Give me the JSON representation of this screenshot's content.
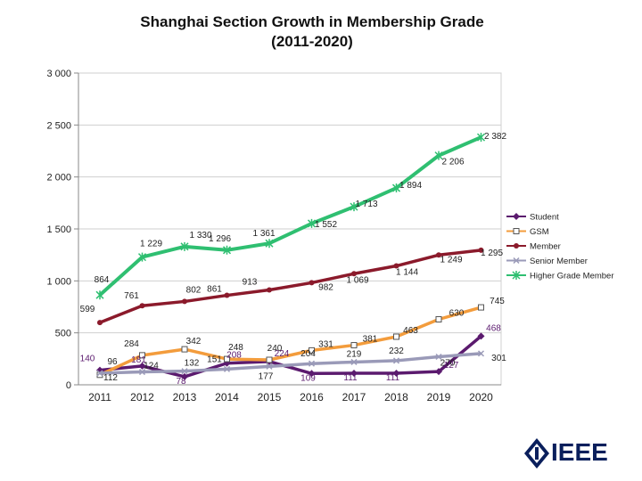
{
  "chart_data": {
    "type": "line",
    "title_line1": "Shanghai Section Growth in Membership Grade",
    "title_line2": "(2011-2020)",
    "categories": [
      "2011",
      "2012",
      "2013",
      "2014",
      "2015",
      "2016",
      "2017",
      "2018",
      "2019",
      "2020"
    ],
    "ylim": [
      0,
      3000
    ],
    "yticks": [
      0,
      500,
      1000,
      1500,
      2000,
      2500,
      3000
    ],
    "ytick_labels": [
      "0",
      "500",
      "1 000",
      "1 500",
      "2 000",
      "2 500",
      "3 000"
    ],
    "series": [
      {
        "name": "Student",
        "color": "#5b1a6e",
        "marker": "diamond",
        "values": [
          140,
          181,
          78,
          208,
          224,
          109,
          111,
          111,
          127,
          468
        ],
        "labels": [
          "140",
          "181",
          "78",
          "208",
          "224",
          "109",
          "111",
          "111",
          "127",
          "468"
        ]
      },
      {
        "name": "GSM",
        "color": "#f39c3c",
        "marker": "square",
        "values": [
          96,
          284,
          342,
          248,
          240,
          331,
          381,
          463,
          630,
          745
        ],
        "labels": [
          "96",
          "284",
          "342",
          "248",
          "240",
          "331",
          "381",
          "463",
          "630",
          "745"
        ]
      },
      {
        "name": "Member",
        "color": "#8b1a2b",
        "marker": "circle",
        "values": [
          599,
          761,
          802,
          861,
          913,
          982,
          1069,
          1144,
          1249,
          1295
        ],
        "labels": [
          "599",
          "761",
          "802",
          "861",
          "913",
          "982",
          "1 069",
          "1 144",
          "1 249",
          "1 295"
        ]
      },
      {
        "name": "Senior Member",
        "color": "#9a9ab8",
        "marker": "x",
        "values": [
          112,
          124,
          132,
          151,
          177,
          204,
          219,
          232,
          270,
          301
        ],
        "labels": [
          "112",
          "124",
          "132",
          "151",
          "177",
          "204",
          "219",
          "232",
          "270",
          "301"
        ]
      },
      {
        "name": "Higher Grade Member",
        "color": "#2fbf71",
        "marker": "star",
        "values": [
          864,
          1229,
          1330,
          1296,
          1361,
          1552,
          1713,
          1894,
          2206,
          2382
        ],
        "labels": [
          "864",
          "1 229",
          "1 330",
          "1 296",
          "1 361",
          "1 552",
          "1 713",
          "1 894",
          "2 206",
          "2 382"
        ]
      }
    ],
    "legend_position": "right"
  },
  "logo": {
    "text": "IEEE"
  }
}
